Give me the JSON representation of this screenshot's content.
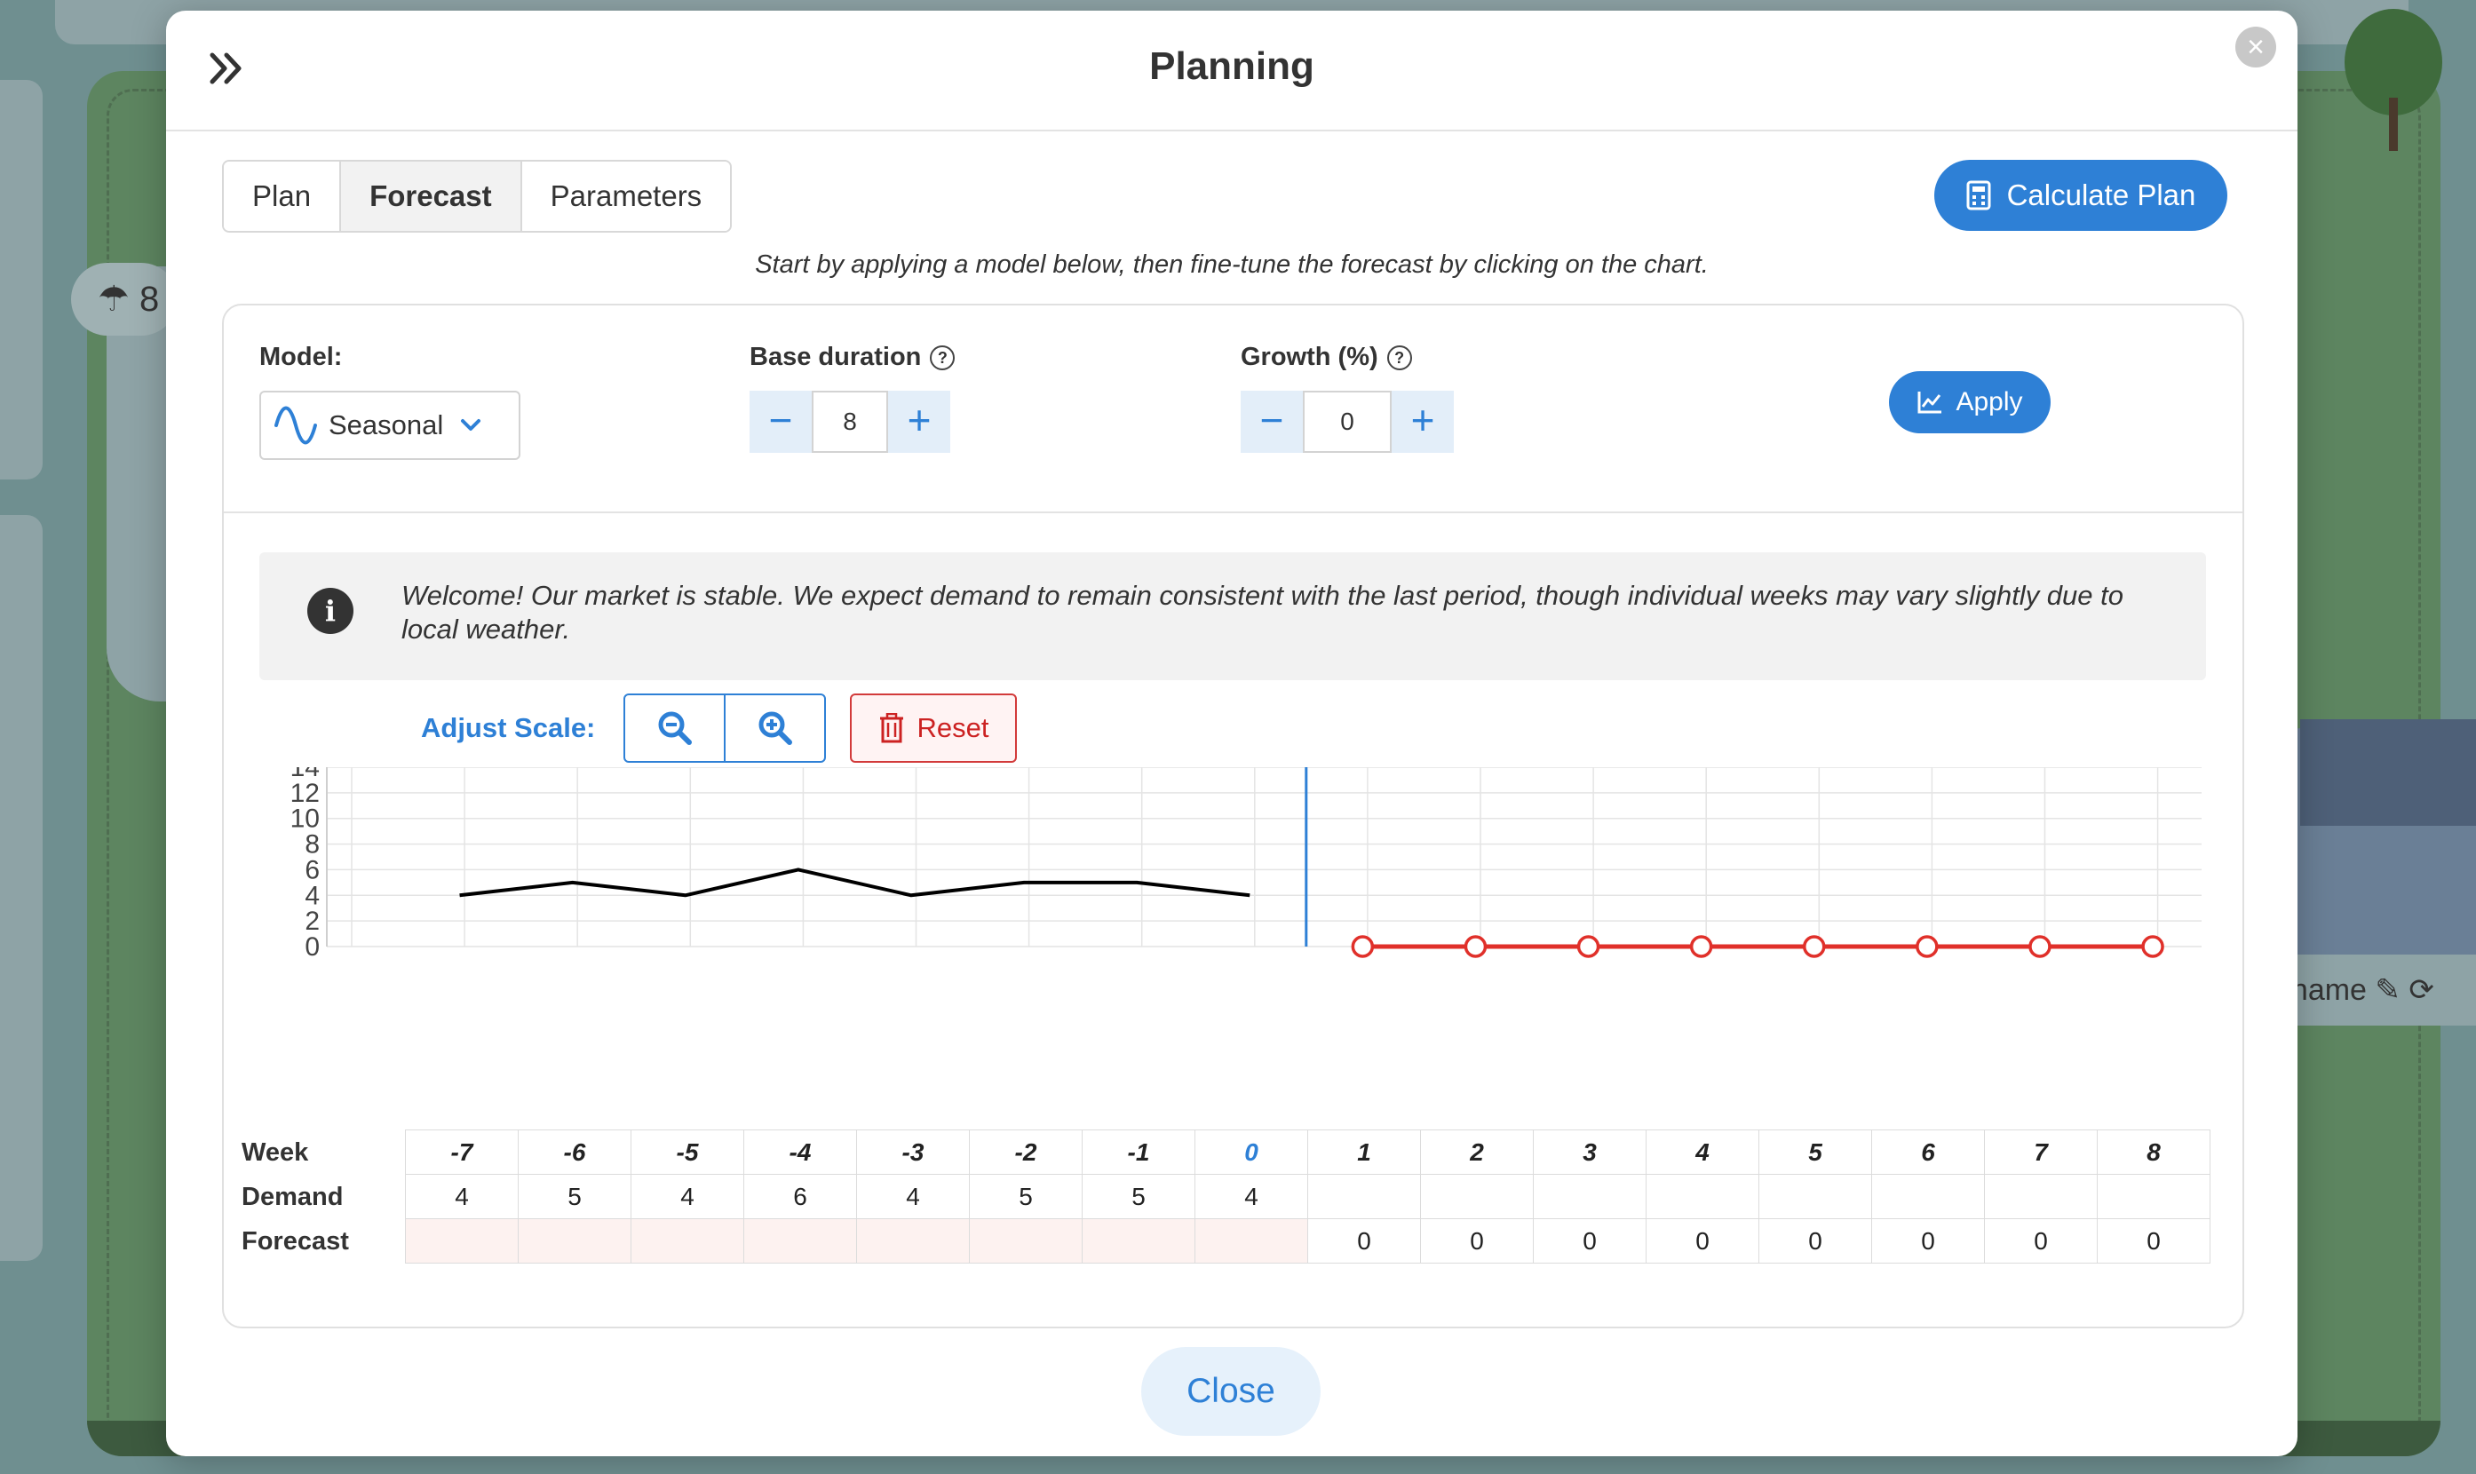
{
  "background": {
    "pill_text": "8",
    "name_text": "ld name"
  },
  "modal": {
    "title": "Planning",
    "close_icon": "close-icon",
    "collapse_icon": "double-chevron-right-icon"
  },
  "tabs": [
    {
      "label": "Plan",
      "active": false
    },
    {
      "label": "Forecast",
      "active": true
    },
    {
      "label": "Parameters",
      "active": false
    }
  ],
  "calculate_button": {
    "label": "Calculate Plan",
    "icon": "calculator-icon"
  },
  "hint": "Start by applying a model below, then fine-tune the forecast by clicking on the chart.",
  "model": {
    "label": "Model:",
    "selected": "Seasonal",
    "icon": "sine-wave-icon"
  },
  "base_duration": {
    "label": "Base duration",
    "value": "8"
  },
  "growth": {
    "label": "Growth (%)",
    "value": "0"
  },
  "apply_button": {
    "label": "Apply",
    "icon": "line-chart-icon"
  },
  "info": {
    "text": "Welcome! Our market is stable. We expect demand to remain consistent with the last period, though individual weeks may vary slightly due to local weather.",
    "icon": "info-icon"
  },
  "scale": {
    "label": "Adjust Scale:",
    "zoom_out_icon": "zoom-out-icon",
    "zoom_in_icon": "zoom-in-icon",
    "reset_label": "Reset",
    "reset_icon": "trash-icon"
  },
  "table": {
    "row_labels": {
      "week": "Week",
      "demand": "Demand",
      "forecast": "Forecast"
    },
    "weeks": [
      "-7",
      "-6",
      "-5",
      "-4",
      "-3",
      "-2",
      "-1",
      "0",
      "1",
      "2",
      "3",
      "4",
      "5",
      "6",
      "7",
      "8"
    ],
    "demand": [
      "4",
      "5",
      "4",
      "6",
      "4",
      "5",
      "5",
      "4",
      "",
      "",
      "",
      "",
      "",
      "",
      "",
      ""
    ],
    "forecast": [
      "",
      "",
      "",
      "",
      "",
      "",
      "",
      "",
      "0",
      "0",
      "0",
      "0",
      "0",
      "0",
      "0",
      "0"
    ]
  },
  "chart_data": {
    "type": "line",
    "x": [
      -7,
      -6,
      -5,
      -4,
      -3,
      -2,
      -1,
      0,
      1,
      2,
      3,
      4,
      5,
      6,
      7,
      8
    ],
    "series": [
      {
        "values": [
          4,
          5,
          4,
          6,
          4,
          5,
          5,
          4
        ],
        "x": [
          -7,
          -6,
          -5,
          -4,
          -3,
          -2,
          -1,
          0
        ],
        "color": "#000000"
      },
      {
        "values": [
          0,
          0,
          0,
          0,
          0,
          0,
          0,
          0
        ],
        "x": [
          1,
          2,
          3,
          4,
          5,
          6,
          7,
          8
        ],
        "color": "#e0302a",
        "markers": "hollow-circle"
      }
    ],
    "yticks": [
      "0",
      "2",
      "4",
      "6",
      "8",
      "10",
      "12",
      "14"
    ],
    "ylim": [
      0,
      14
    ],
    "current_week_marker": 0,
    "marker_color": "#2e80d6",
    "grid": true
  },
  "close_button": {
    "label": "Close"
  }
}
